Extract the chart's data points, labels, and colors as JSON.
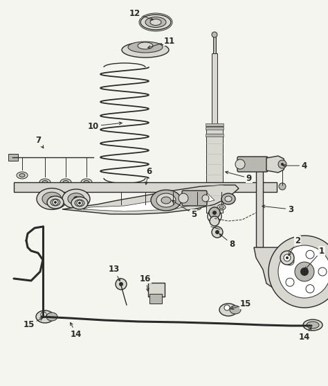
{
  "background_color": "#f5f5f0",
  "line_color": "#2a2a2a",
  "fill_light": "#d8d8d0",
  "fill_mid": "#b8b8b0",
  "fill_dark": "#909088",
  "white": "#ffffff",
  "fig_width": 4.74,
  "fig_height": 5.57,
  "dpi": 100,
  "font_size": 7.0,
  "label_font_size": 8.5
}
